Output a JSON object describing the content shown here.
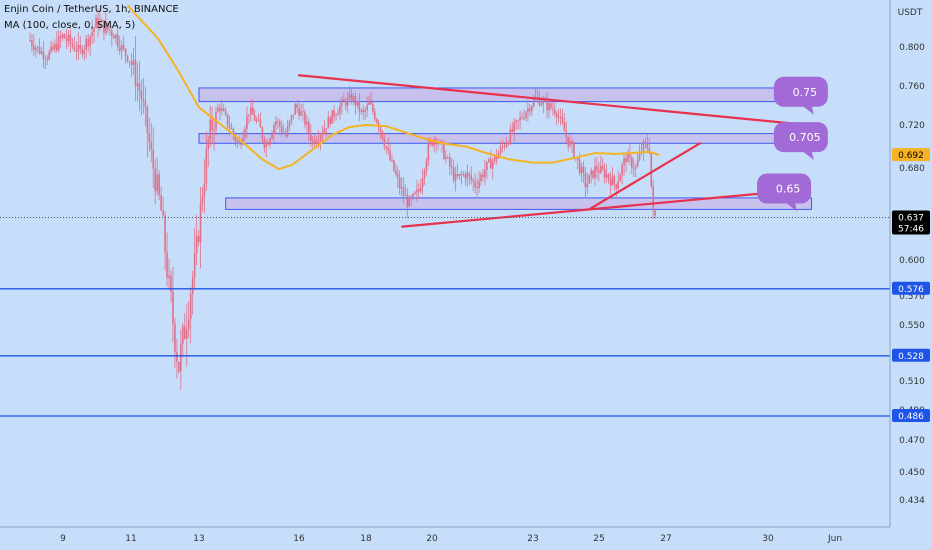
{
  "header": {
    "symbol_line": "Enjin Coin / TetherUS, 1h, BINANCE",
    "indicator_line": "MA (100, close, 0, SMA, 5)"
  },
  "colors": {
    "background": "#c6defa",
    "candle": "#e0708a",
    "ma_line": "#f5b324",
    "trend_line": "#e8314d",
    "level_line": "#1f55e6",
    "zone_fill": "#c5b7e8",
    "zone_border": "#3d5bf0",
    "callout": "#a16ad6",
    "label_current": "#000000",
    "label_ma": "#f5b324",
    "label_level": "#1f55e6"
  },
  "chart_data": {
    "type": "candlestick",
    "title": "Enjin Coin / TetherUS, 1h, BINANCE",
    "yaxis": {
      "unit": "USDT",
      "ticks": [
        "0.800",
        "0.760",
        "0.720",
        "0.680",
        "0.600",
        "0.570",
        "0.550",
        "0.510",
        "0.490",
        "0.470",
        "0.450",
        "0.434"
      ],
      "tick_values": [
        0.8,
        0.76,
        0.72,
        0.68,
        0.6,
        0.57,
        0.55,
        0.51,
        0.49,
        0.47,
        0.45,
        0.434
      ]
    },
    "xaxis": {
      "ticks": [
        "9",
        "11",
        "13",
        "16",
        "18",
        "20",
        "23",
        "25",
        "27",
        "30",
        "Jun"
      ],
      "tick_days": [
        9,
        11,
        13,
        16,
        18,
        20,
        23,
        25,
        27,
        30,
        32
      ]
    },
    "price_labels": [
      {
        "text": "0.692",
        "value": 0.692,
        "role": "ma"
      },
      {
        "text": "0.637",
        "value": 0.637,
        "role": "current",
        "sub": "57:46"
      },
      {
        "text": "0.576",
        "value": 0.576,
        "role": "level"
      },
      {
        "text": "0.528",
        "value": 0.528,
        "role": "level"
      },
      {
        "text": "0.486",
        "value": 0.486,
        "role": "level"
      }
    ],
    "horizontal_levels": [
      0.576,
      0.528,
      0.486
    ],
    "current_price": 0.637,
    "zones": [
      {
        "day_start": 13.0,
        "day_end": 31.3,
        "high": 0.758,
        "low": 0.744
      },
      {
        "day_start": 13.0,
        "day_end": 31.3,
        "high": 0.712,
        "low": 0.703
      },
      {
        "day_start": 13.8,
        "day_end": 31.3,
        "high": 0.654,
        "low": 0.644
      }
    ],
    "trendlines": [
      {
        "from": [
          16.0,
          0.771
        ],
        "to": [
          31.2,
          0.72
        ]
      },
      {
        "from": [
          19.1,
          0.629
        ],
        "to": [
          31.0,
          0.661
        ]
      },
      {
        "from": [
          24.7,
          0.644
        ],
        "to": [
          28.0,
          0.703
        ]
      }
    ],
    "callouts": [
      {
        "text": "0.75",
        "value": 0.75,
        "day": 31.1
      },
      {
        "text": "0.705",
        "value": 0.705,
        "day": 31.1
      },
      {
        "text": "0.65",
        "value": 0.65,
        "day": 30.6
      }
    ],
    "ma": {
      "name": "MA (100, close, 0, SMA, 5)",
      "points": [
        [
          10.9,
          0.83
        ],
        [
          11.8,
          0.806
        ],
        [
          12.4,
          0.775
        ],
        [
          13.0,
          0.738
        ],
        [
          13.6,
          0.722
        ],
        [
          14.2,
          0.707
        ],
        [
          14.9,
          0.688
        ],
        [
          15.4,
          0.679
        ],
        [
          15.8,
          0.683
        ],
        [
          16.4,
          0.697
        ],
        [
          17.0,
          0.711
        ],
        [
          17.5,
          0.718
        ],
        [
          18.0,
          0.72
        ],
        [
          18.6,
          0.719
        ],
        [
          19.1,
          0.714
        ],
        [
          19.7,
          0.708
        ],
        [
          20.3,
          0.703
        ],
        [
          21.0,
          0.7
        ],
        [
          21.6,
          0.694
        ],
        [
          22.3,
          0.688
        ],
        [
          23.0,
          0.685
        ],
        [
          23.6,
          0.685
        ],
        [
          24.2,
          0.689
        ],
        [
          24.9,
          0.694
        ],
        [
          25.5,
          0.693
        ],
        [
          26.0,
          0.694
        ],
        [
          26.5,
          0.695
        ],
        [
          26.8,
          0.692
        ]
      ]
    },
    "price_path": [
      [
        8.0,
        0.805
      ],
      [
        8.5,
        0.79
      ],
      [
        9.0,
        0.808
      ],
      [
        9.5,
        0.795
      ],
      [
        10.0,
        0.818
      ],
      [
        10.5,
        0.81
      ],
      [
        11.0,
        0.785
      ],
      [
        11.3,
        0.75
      ],
      [
        11.6,
        0.69
      ],
      [
        11.9,
        0.64
      ],
      [
        12.1,
        0.58
      ],
      [
        12.4,
        0.52
      ],
      [
        12.6,
        0.55
      ],
      [
        12.9,
        0.6
      ],
      [
        13.1,
        0.66
      ],
      [
        13.3,
        0.71
      ],
      [
        13.6,
        0.74
      ],
      [
        13.9,
        0.72
      ],
      [
        14.2,
        0.7
      ],
      [
        14.5,
        0.735
      ],
      [
        14.8,
        0.72
      ],
      [
        15.0,
        0.7
      ],
      [
        15.3,
        0.725
      ],
      [
        15.6,
        0.71
      ],
      [
        15.9,
        0.74
      ],
      [
        16.1,
        0.73
      ],
      [
        16.4,
        0.705
      ],
      [
        16.7,
        0.715
      ],
      [
        17.0,
        0.73
      ],
      [
        17.3,
        0.742
      ],
      [
        17.6,
        0.748
      ],
      [
        17.9,
        0.73
      ],
      [
        18.1,
        0.742
      ],
      [
        18.4,
        0.72
      ],
      [
        18.7,
        0.69
      ],
      [
        19.0,
        0.665
      ],
      [
        19.3,
        0.648
      ],
      [
        19.6,
        0.66
      ],
      [
        19.9,
        0.7
      ],
      [
        20.1,
        0.71
      ],
      [
        20.4,
        0.69
      ],
      [
        20.7,
        0.67
      ],
      [
        21.0,
        0.675
      ],
      [
        21.3,
        0.665
      ],
      [
        21.6,
        0.68
      ],
      [
        21.9,
        0.69
      ],
      [
        22.2,
        0.705
      ],
      [
        22.5,
        0.72
      ],
      [
        22.8,
        0.735
      ],
      [
        23.1,
        0.748
      ],
      [
        23.4,
        0.74
      ],
      [
        23.7,
        0.735
      ],
      [
        24.0,
        0.71
      ],
      [
        24.3,
        0.69
      ],
      [
        24.6,
        0.665
      ],
      [
        24.9,
        0.68
      ],
      [
        25.2,
        0.675
      ],
      [
        25.5,
        0.665
      ],
      [
        25.8,
        0.69
      ],
      [
        26.1,
        0.68
      ],
      [
        26.3,
        0.7
      ],
      [
        26.5,
        0.7
      ],
      [
        26.6,
        0.64
      ],
      [
        26.7,
        0.637
      ]
    ]
  }
}
